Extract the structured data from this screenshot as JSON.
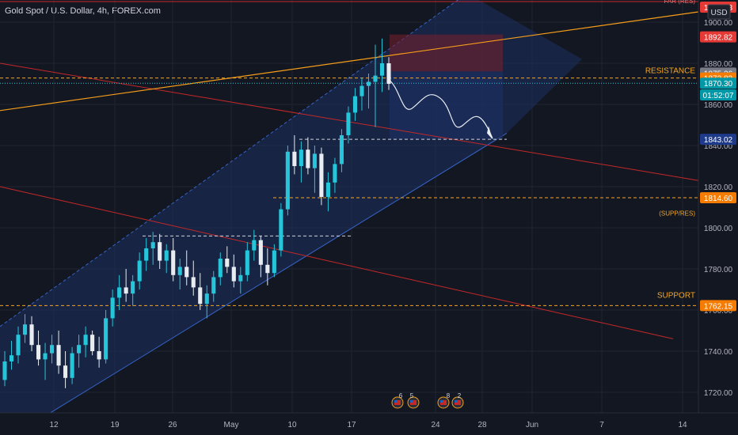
{
  "header": {
    "title": "Gold Spot / U.S. Dollar, 4h, FOREX.com"
  },
  "currency": "USD",
  "colors": {
    "background": "#131722",
    "grid": "#1f2433",
    "axis_text": "#b2b5be",
    "up": "#26c6da",
    "down": "#e8ecf1",
    "channel_fill": "#1b2f5e",
    "channel_line": "#3563c7",
    "red_line": "#c62828",
    "orange_line": "#f59d1a",
    "dash_white": "#d1d4dc",
    "dash_orange": "#f5a623"
  },
  "chart_data": {
    "type": "candlestick",
    "symbol": "Gold Spot / U.S. Dollar",
    "interval": "4h",
    "source": "FOREX.com",
    "y_ticks": [
      1720,
      1740,
      1760,
      1780,
      1800,
      1820,
      1840,
      1860,
      1880,
      1900
    ],
    "y_tick_labels": [
      "1720.00",
      "1740.00",
      "1760.00",
      "1780.00",
      "1800.00",
      "1820.00",
      "1840.00",
      "1860.00",
      "1880.00",
      "1900.00"
    ],
    "x_ticks": [
      "12",
      "19",
      "26",
      "May",
      "10",
      "17",
      "24",
      "28",
      "Jun",
      "7",
      "14"
    ],
    "y_range": [
      1710,
      1910
    ],
    "price_labels": [
      {
        "text": "1892.82",
        "color": "#e53935",
        "value": 1892.82
      },
      {
        "text": "1875.26",
        "color": "#787b86",
        "value": 1875.26
      },
      {
        "text": "1872.82",
        "color": "#f57c00",
        "value": 1872.82
      },
      {
        "text": "1870.30",
        "color": "#0097a7",
        "value": 1870.3
      },
      {
        "text": "01:52:07",
        "color": "#0097a7",
        "value": 1864.6
      },
      {
        "text": "1843.02",
        "color": "#1e3a8a",
        "value": 1843.02
      },
      {
        "text": "1814.60",
        "color": "#f57c00",
        "value": 1814.6
      },
      {
        "text": "1762.15",
        "color": "#f57c00",
        "value": 1762.15
      }
    ],
    "annotations": [
      {
        "text": "RESISTANCE",
        "value": 1872.82
      },
      {
        "text": "(SUPP/RES)",
        "value": 1806
      },
      {
        "text": "SUPPORT",
        "value": 1766
      },
      {
        "text": "FAR (RES)",
        "value": 1910
      }
    ],
    "levels": {
      "resistance": 1872.82,
      "supp_res": 1814.6,
      "support": 1762.15,
      "target": 1843.02
    },
    "candles": [
      [
        1726,
        1740,
        1723,
        1735
      ],
      [
        1735,
        1745,
        1731,
        1738
      ],
      [
        1738,
        1752,
        1734,
        1748
      ],
      [
        1748,
        1758,
        1744,
        1753
      ],
      [
        1753,
        1757,
        1740,
        1743
      ],
      [
        1743,
        1750,
        1733,
        1736
      ],
      [
        1736,
        1744,
        1726,
        1739
      ],
      [
        1739,
        1748,
        1734,
        1743
      ],
      [
        1743,
        1750,
        1729,
        1733
      ],
      [
        1733,
        1740,
        1722,
        1727
      ],
      [
        1727,
        1742,
        1724,
        1739
      ],
      [
        1739,
        1748,
        1732,
        1743
      ],
      [
        1743,
        1752,
        1737,
        1748
      ],
      [
        1748,
        1750,
        1738,
        1740
      ],
      [
        1740,
        1747,
        1732,
        1736
      ],
      [
        1736,
        1760,
        1734,
        1756
      ],
      [
        1756,
        1770,
        1752,
        1766
      ],
      [
        1766,
        1777,
        1760,
        1771
      ],
      [
        1771,
        1780,
        1764,
        1768
      ],
      [
        1768,
        1777,
        1762,
        1774
      ],
      [
        1774,
        1788,
        1770,
        1784
      ],
      [
        1784,
        1795,
        1779,
        1790
      ],
      [
        1790,
        1798,
        1782,
        1793
      ],
      [
        1793,
        1797,
        1780,
        1784
      ],
      [
        1784,
        1792,
        1778,
        1789
      ],
      [
        1789,
        1795,
        1774,
        1777
      ],
      [
        1777,
        1785,
        1770,
        1781
      ],
      [
        1781,
        1789,
        1772,
        1776
      ],
      [
        1776,
        1784,
        1767,
        1771
      ],
      [
        1771,
        1778,
        1760,
        1763
      ],
      [
        1763,
        1772,
        1756,
        1768
      ],
      [
        1768,
        1779,
        1764,
        1776
      ],
      [
        1776,
        1788,
        1772,
        1785
      ],
      [
        1785,
        1791,
        1778,
        1781
      ],
      [
        1781,
        1787,
        1771,
        1774
      ],
      [
        1774,
        1781,
        1768,
        1777
      ],
      [
        1777,
        1793,
        1774,
        1789
      ],
      [
        1789,
        1799,
        1784,
        1794
      ],
      [
        1794,
        1796,
        1776,
        1782
      ],
      [
        1782,
        1790,
        1772,
        1778
      ],
      [
        1778,
        1792,
        1776,
        1789
      ],
      [
        1789,
        1812,
        1786,
        1809
      ],
      [
        1809,
        1840,
        1806,
        1837
      ],
      [
        1837,
        1845,
        1826,
        1830
      ],
      [
        1830,
        1842,
        1822,
        1838
      ],
      [
        1838,
        1844,
        1826,
        1829
      ],
      [
        1829,
        1840,
        1817,
        1836
      ],
      [
        1836,
        1839,
        1811,
        1815
      ],
      [
        1815,
        1827,
        1808,
        1822
      ],
      [
        1822,
        1834,
        1817,
        1831
      ],
      [
        1831,
        1848,
        1827,
        1845
      ],
      [
        1845,
        1859,
        1841,
        1856
      ],
      [
        1856,
        1868,
        1852,
        1864
      ],
      [
        1864,
        1873,
        1857,
        1869
      ],
      [
        1869,
        1875,
        1858,
        1871
      ],
      [
        1871,
        1889,
        1849,
        1874
      ],
      [
        1874,
        1892,
        1866,
        1880
      ],
      [
        1880,
        1883,
        1867,
        1870
      ]
    ],
    "projection_end": 1843.02
  }
}
